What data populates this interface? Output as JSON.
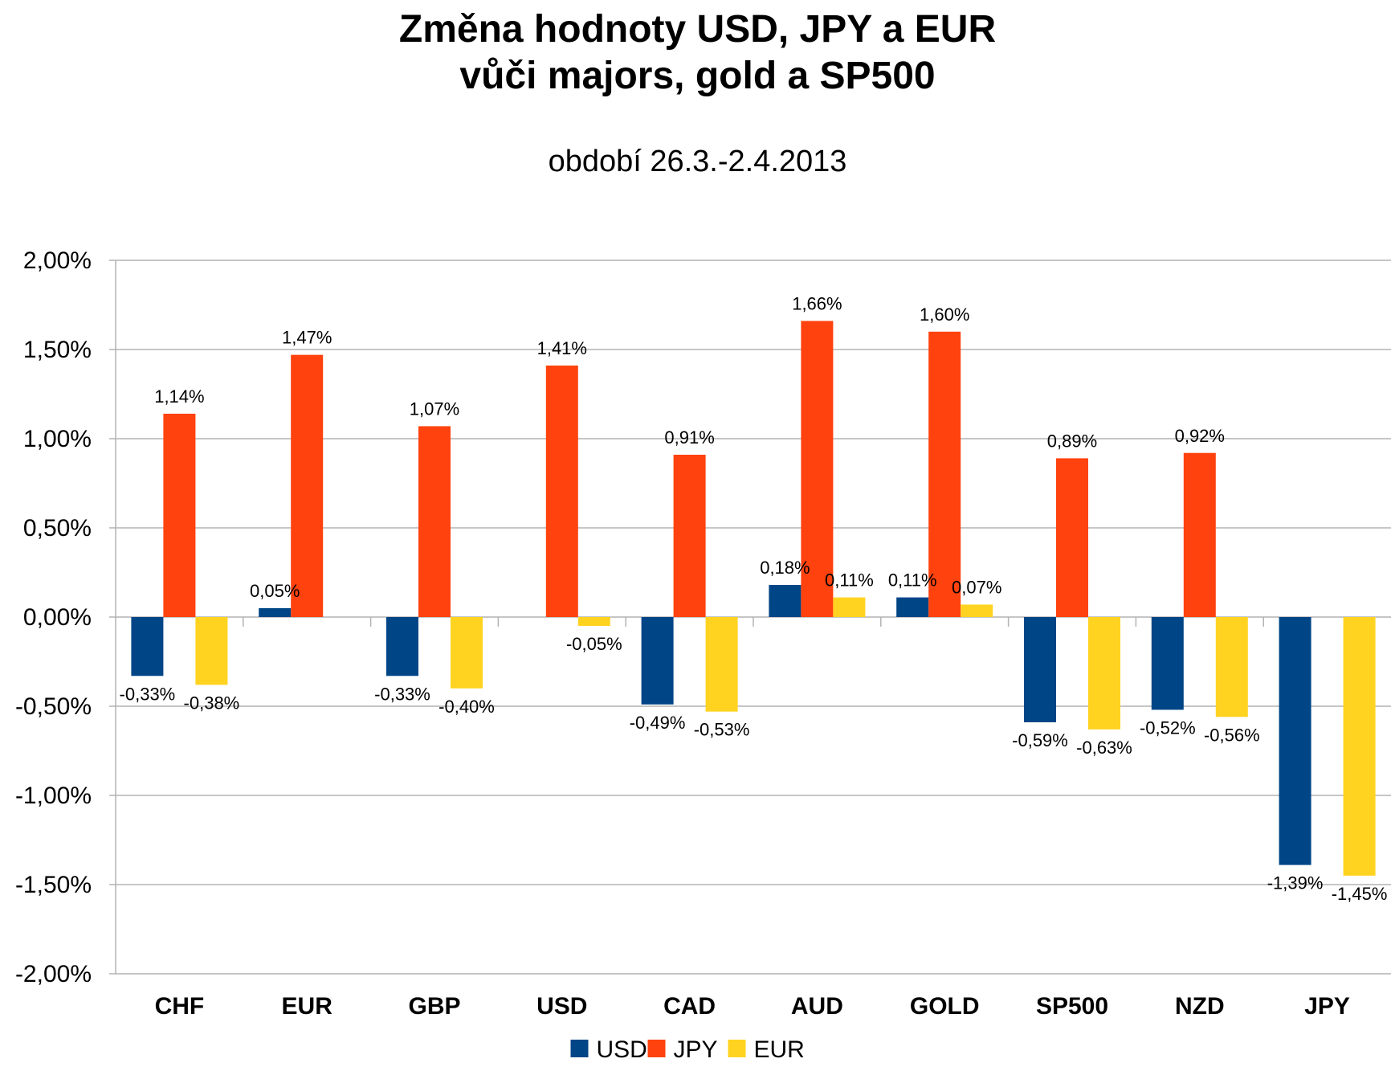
{
  "chart_data": {
    "type": "bar",
    "title_line1": "Změna hodnoty USD, JPY a EUR",
    "title_line2": "vůči majors, gold a SP500",
    "subtitle": "období 26.3.-2.4.2013",
    "categories": [
      "CHF",
      "EUR",
      "GBP",
      "USD",
      "CAD",
      "AUD",
      "GOLD",
      "SP500",
      "NZD",
      "JPY"
    ],
    "series": [
      {
        "name": "USD",
        "color": "#004586",
        "values": [
          -0.33,
          0.05,
          -0.33,
          null,
          -0.49,
          0.18,
          0.11,
          -0.59,
          -0.52,
          -1.39
        ],
        "labels": [
          "-0,33%",
          "0,05%",
          "-0,33%",
          "",
          "-0,49%",
          "0,18%",
          "0,11%",
          "-0,59%",
          "-0,52%",
          "-1,39%"
        ]
      },
      {
        "name": "JPY",
        "color": "#ff420e",
        "values": [
          1.14,
          1.47,
          1.07,
          1.41,
          0.91,
          1.66,
          1.6,
          0.89,
          0.92,
          null
        ],
        "labels": [
          "1,14%",
          "1,47%",
          "1,07%",
          "1,41%",
          "0,91%",
          "1,66%",
          "1,60%",
          "0,89%",
          "0,92%",
          ""
        ]
      },
      {
        "name": "EUR",
        "color": "#ffd320",
        "values": [
          -0.38,
          null,
          -0.4,
          -0.05,
          -0.53,
          0.11,
          0.07,
          -0.63,
          -0.56,
          -1.45
        ],
        "labels": [
          "-0,38%",
          "",
          "-0,40%",
          "-0,05%",
          "-0,53%",
          "0,11%",
          "0,07%",
          "-0,63%",
          "-0,56%",
          "-1,45%"
        ]
      }
    ],
    "ylim": [
      -2.0,
      2.0
    ],
    "y_ticks": [
      2.0,
      1.5,
      1.0,
      0.5,
      0.0,
      -0.5,
      -1.0,
      -1.5,
      -2.0
    ],
    "y_tick_labels": [
      "2,00%",
      "1,50%",
      "1,00%",
      "0,50%",
      "0,00%",
      "-0,50%",
      "-1,00%",
      "-1,50%",
      "-2,00%"
    ],
    "grid": true,
    "legend_position": "bottom"
  }
}
